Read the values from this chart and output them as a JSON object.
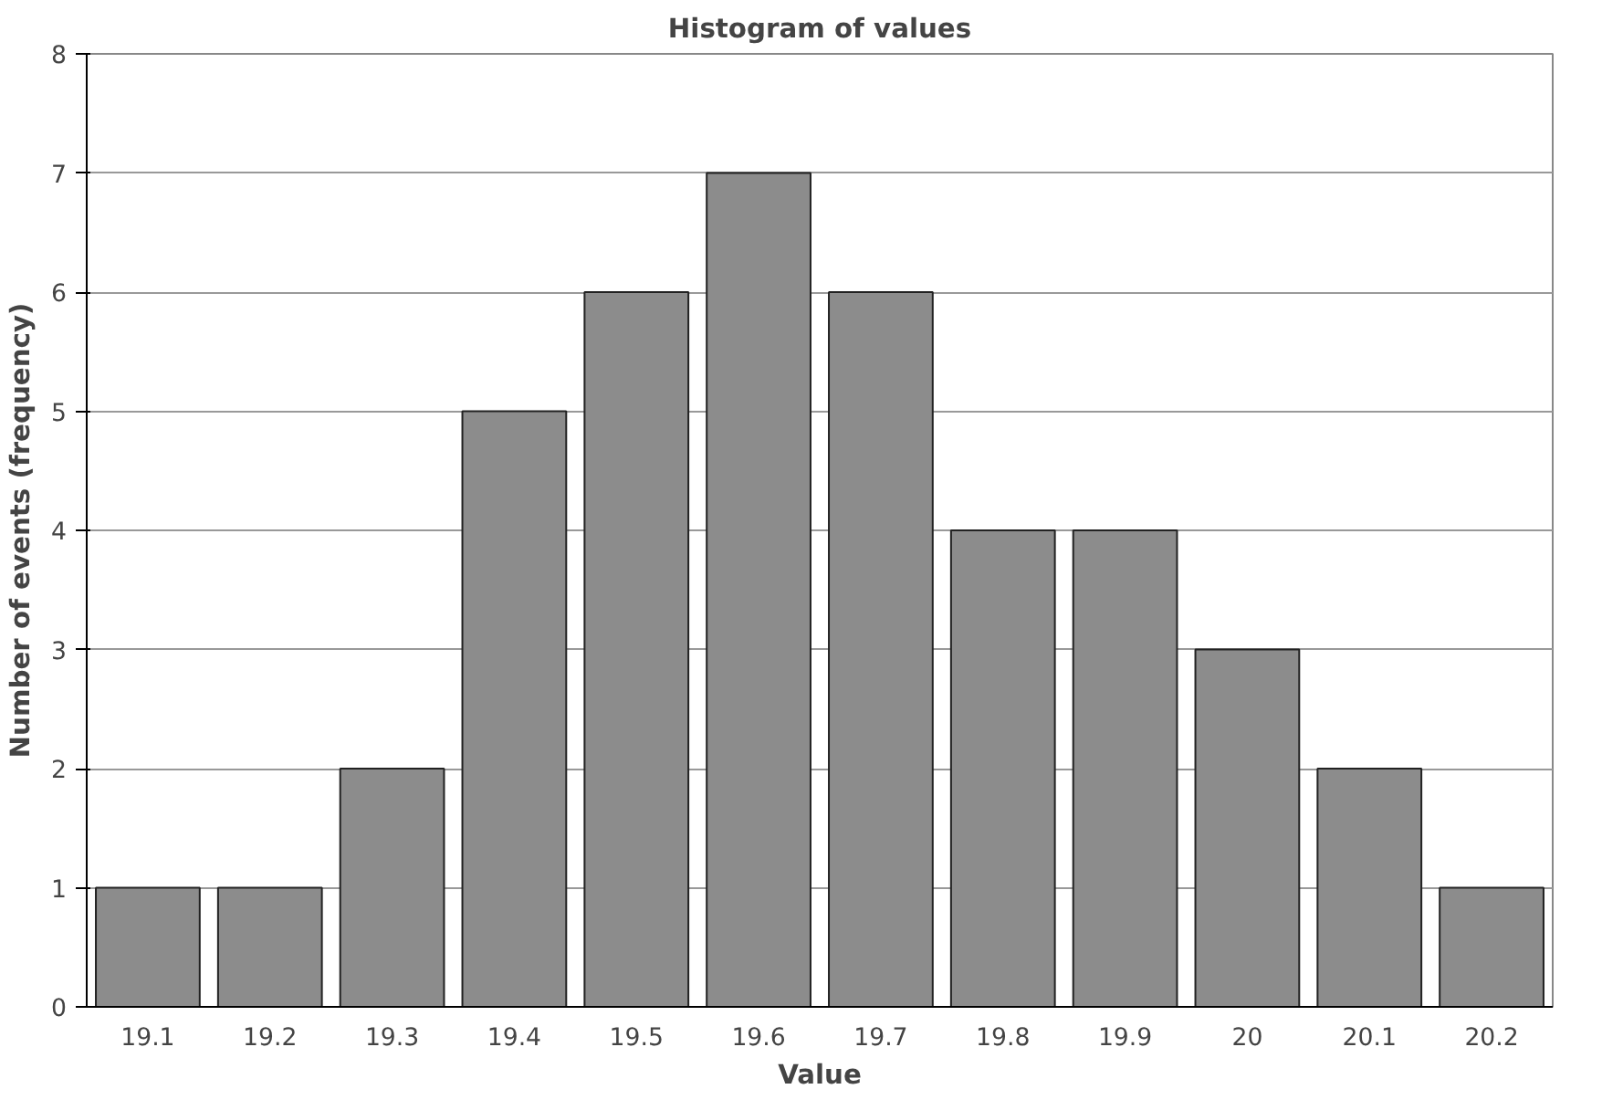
{
  "chart_data": {
    "type": "bar",
    "title": "Histogram of values",
    "xlabel": "Value",
    "ylabel": "Number of events (frequency)",
    "categories": [
      "19.1",
      "19.2",
      "19.3",
      "19.4",
      "19.5",
      "19.6",
      "19.7",
      "19.8",
      "19.9",
      "20",
      "20.1",
      "20.2"
    ],
    "values": [
      1,
      1,
      2,
      5,
      6,
      7,
      6,
      4,
      4,
      3,
      2,
      1
    ],
    "color": "#8c8c8c",
    "ylim": [
      0,
      8
    ],
    "yticks": [
      0,
      1,
      2,
      3,
      4,
      5,
      6,
      7,
      8
    ],
    "grid": "y"
  }
}
